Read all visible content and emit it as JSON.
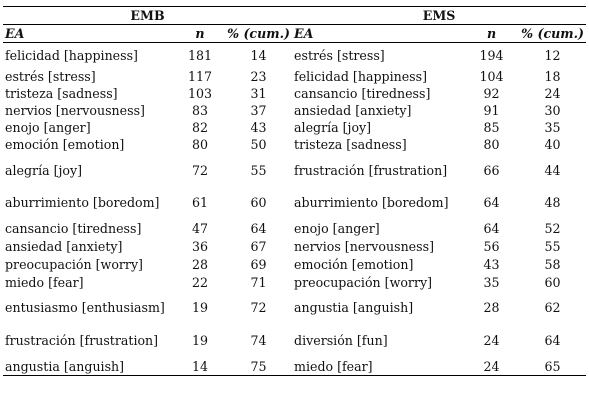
{
  "table": {
    "emb_header": "EMB",
    "ems_header": "EMS",
    "col_ea": "EA",
    "col_n": "n",
    "col_pct": "% (cum.)",
    "rows": [
      {
        "emb_ea": "felicidad [happiness]",
        "emb_n": "181",
        "emb_pct": "14",
        "ems_ea": "estrés [stress]",
        "ems_n": "194",
        "ems_pct": "12"
      },
      {
        "emb_ea": "estrés [stress]",
        "emb_n": "117",
        "emb_pct": "23",
        "ems_ea": "felicidad [happiness]",
        "ems_n": "104",
        "ems_pct": "18"
      },
      {
        "emb_ea": "tristeza [sadness]",
        "emb_n": "103",
        "emb_pct": "31",
        "ems_ea": "cansancio [tiredness]",
        "ems_n": "92",
        "ems_pct": "24"
      },
      {
        "emb_ea": "nervios [nervousness]",
        "emb_n": "83",
        "emb_pct": "37",
        "ems_ea": "ansiedad [anxiety]",
        "ems_n": "91",
        "ems_pct": "30"
      },
      {
        "emb_ea": "enojo [anger]",
        "emb_n": "82",
        "emb_pct": "43",
        "ems_ea": "alegría [joy]",
        "ems_n": "85",
        "ems_pct": "35"
      },
      {
        "emb_ea": "emoción [emotion]",
        "emb_n": "80",
        "emb_pct": "50",
        "ems_ea": "tristeza [sadness]",
        "ems_n": "80",
        "ems_pct": "40"
      },
      {
        "emb_ea": "alegría [joy]",
        "emb_n": "72",
        "emb_pct": "55",
        "ems_ea": "frustración [frustration]",
        "ems_n": "66",
        "ems_pct": "44"
      },
      {
        "emb_ea": "aburrimiento [boredom]",
        "emb_n": "61",
        "emb_pct": "60",
        "ems_ea": "aburrimiento [boredom]",
        "ems_n": "64",
        "ems_pct": "48"
      },
      {
        "emb_ea": "cansancio [tiredness]",
        "emb_n": "47",
        "emb_pct": "64",
        "ems_ea": "enojo [anger]",
        "ems_n": "64",
        "ems_pct": "52"
      },
      {
        "emb_ea": "ansiedad [anxiety]",
        "emb_n": "36",
        "emb_pct": "67",
        "ems_ea": "nervios [nervousness]",
        "ems_n": "56",
        "ems_pct": "55"
      },
      {
        "emb_ea": "preocupación [worry]",
        "emb_n": "28",
        "emb_pct": "69",
        "ems_ea": "emoción [emotion]",
        "ems_n": "43",
        "ems_pct": "58"
      },
      {
        "emb_ea": "miedo [fear]",
        "emb_n": "22",
        "emb_pct": "71",
        "ems_ea": "preocupación [worry]",
        "ems_n": "35",
        "ems_pct": "60"
      },
      {
        "emb_ea": "entusiasmo [enthusiasm]",
        "emb_n": "19",
        "emb_pct": "72",
        "ems_ea": "angustia [anguish]",
        "ems_n": "28",
        "ems_pct": "62"
      },
      {
        "emb_ea": "frustración [frustration]",
        "emb_n": "19",
        "emb_pct": "74",
        "ems_ea": "diversión [fun]",
        "ems_n": "24",
        "ems_pct": "64"
      },
      {
        "emb_ea": "angustia [anguish]",
        "emb_n": "14",
        "emb_pct": "75",
        "ems_ea": "miedo [fear]",
        "ems_n": "24",
        "ems_pct": "65"
      }
    ]
  }
}
